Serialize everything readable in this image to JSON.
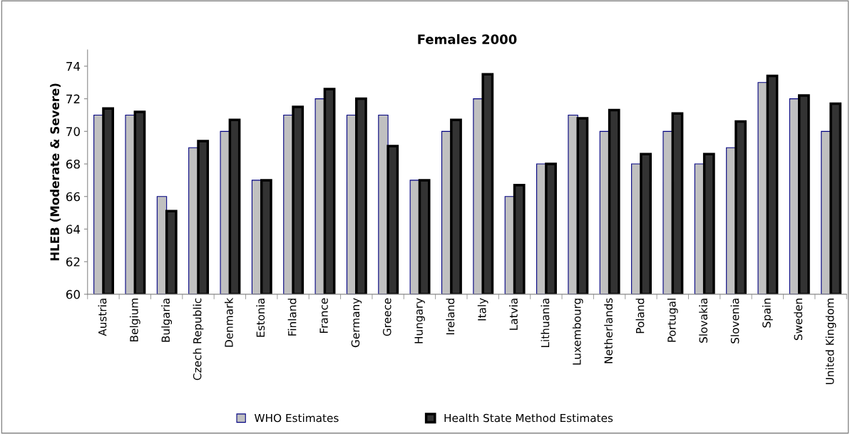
{
  "chart_data": {
    "type": "bar",
    "title": "Females 2000",
    "ylabel": "HLEB (Moderate & Severe)",
    "categories": [
      "Austria",
      "Belgium",
      "Bulgaria",
      "Czech Republic",
      "Denmark",
      "Estonia",
      "Finland",
      "France",
      "Germany",
      "Greece",
      "Hungary",
      "Ireland",
      "Italy",
      "Latvia",
      "Lithuania",
      "Luxembourg",
      "Netherlands",
      "Poland",
      "Portugal",
      "Slovakia",
      "Slovenia",
      "Spain",
      "Sweden",
      "United Kingdom"
    ],
    "series": [
      {
        "name": "WHO Estimates",
        "color": "#c0c0c0",
        "values": [
          71,
          71,
          66,
          69,
          70,
          67,
          71,
          72,
          71,
          71,
          67,
          70,
          72,
          66,
          68,
          71,
          70,
          68,
          70,
          68,
          69,
          73,
          72,
          70
        ]
      },
      {
        "name": "Health State Method Estimates",
        "color": "#333333",
        "values": [
          71.4,
          71.2,
          65.1,
          69.4,
          70.7,
          67.0,
          71.5,
          72.6,
          72.0,
          69.1,
          67.0,
          70.7,
          73.5,
          66.7,
          68.0,
          70.8,
          71.3,
          68.6,
          71.1,
          68.6,
          70.6,
          73.4,
          72.2,
          71.7
        ]
      }
    ],
    "ylim": [
      60,
      75
    ],
    "yticks": [
      60,
      62,
      64,
      66,
      68,
      70,
      72,
      74
    ],
    "grid": false,
    "legend": "bottom"
  }
}
